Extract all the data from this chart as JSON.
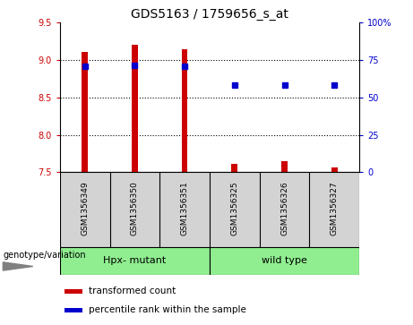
{
  "title": "GDS5163 / 1759656_s_at",
  "samples": [
    "GSM1356349",
    "GSM1356350",
    "GSM1356351",
    "GSM1356325",
    "GSM1356326",
    "GSM1356327"
  ],
  "bar_values": [
    9.11,
    9.21,
    9.15,
    7.61,
    7.65,
    7.56
  ],
  "bar_baseline": 7.5,
  "bar_color": "#cc0000",
  "bar_width": 0.12,
  "dot_values_left": [
    8.92,
    8.93,
    8.92,
    8.67,
    8.67,
    8.67
  ],
  "dot_color": "#0000cc",
  "ylim_left": [
    7.5,
    9.5
  ],
  "ylim_right": [
    0,
    100
  ],
  "yticks_left": [
    7.5,
    8.0,
    8.5,
    9.0,
    9.5
  ],
  "yticks_right": [
    0,
    25,
    50,
    75,
    100
  ],
  "ytick_labels_right": [
    "0",
    "25",
    "50",
    "75",
    "100%"
  ],
  "hlines": [
    9.0,
    8.5,
    8.0
  ],
  "groups": [
    {
      "label": "Hpx- mutant",
      "indices": [
        0,
        1,
        2
      ],
      "color": "#90ee90"
    },
    {
      "label": "wild type",
      "indices": [
        3,
        4,
        5
      ],
      "color": "#90ee90"
    }
  ],
  "genotype_label": "genotype/variation",
  "legend_items": [
    {
      "label": "transformed count",
      "color": "#cc0000"
    },
    {
      "label": "percentile rank within the sample",
      "color": "#0000cc"
    }
  ],
  "bg_color": "#ffffff",
  "plot_bg_color": "#ffffff",
  "tick_color_left": "#cc0000",
  "tick_color_right": "#0000cc",
  "label_box_color": "#d3d3d3",
  "tick_fontsize": 7,
  "title_fontsize": 10
}
